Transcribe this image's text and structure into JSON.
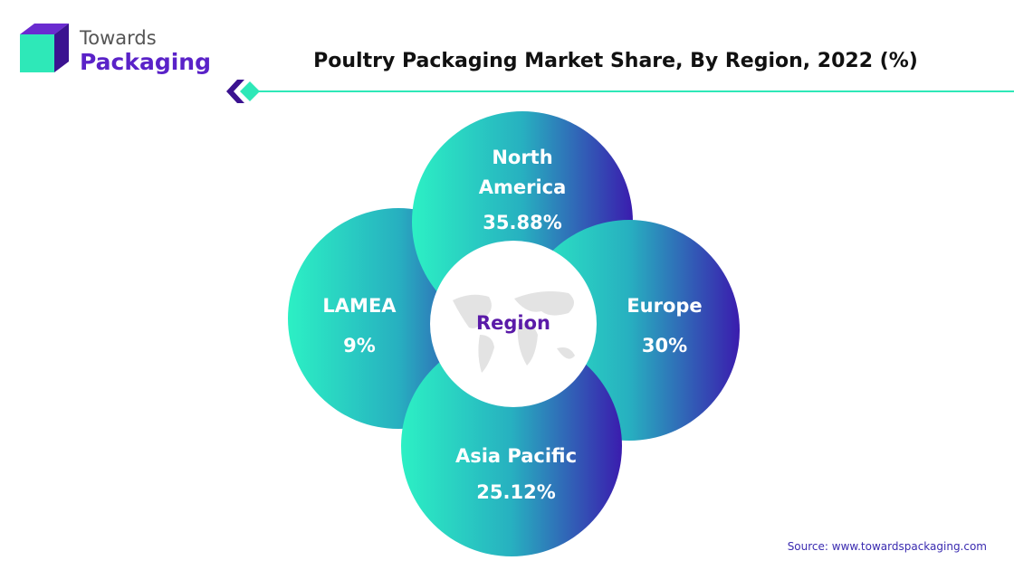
{
  "logo": {
    "line1": "Towards",
    "line2": "Packaging"
  },
  "title": "Poultry Packaging Market Share, By Region, 2022 (%)",
  "center_label": "Region",
  "regions": [
    {
      "name": "North America",
      "value": "35.88%"
    },
    {
      "name": "LAMEA",
      "value": "9%"
    },
    {
      "name": "Europe",
      "value": "30%"
    },
    {
      "name": "Asia Pacific",
      "value": "25.12%"
    }
  ],
  "source": "Source: www.towardspackaging.com"
}
